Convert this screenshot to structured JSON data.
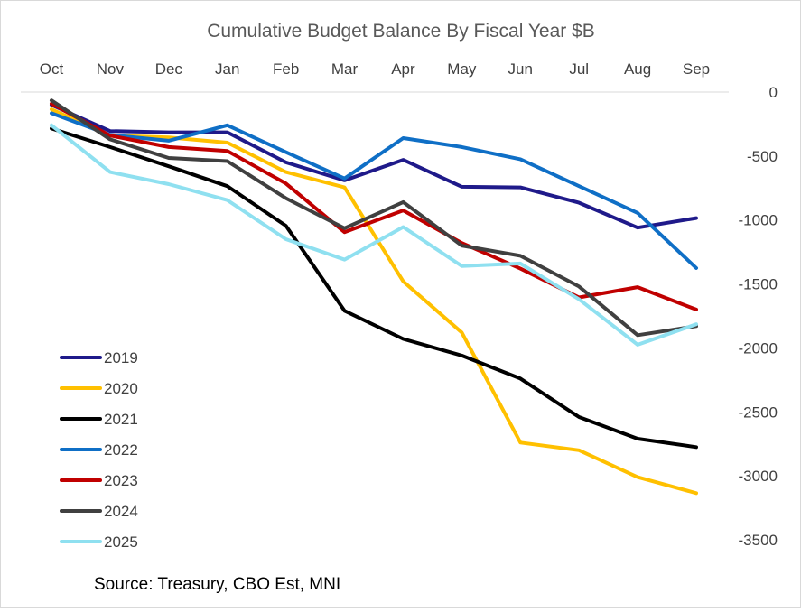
{
  "chart_data": {
    "type": "line",
    "title": "Cumulative Budget Balance By Fiscal Year $B",
    "source": "Source: Treasury, CBO Est, MNI",
    "categories": [
      "Oct",
      "Nov",
      "Dec",
      "Jan",
      "Feb",
      "Mar",
      "Apr",
      "May",
      "Jun",
      "Jul",
      "Aug",
      "Sep"
    ],
    "y_ticks": [
      "0",
      "-500",
      "-1000",
      "-1500",
      "-2000",
      "-2500",
      "-3000",
      "-3500"
    ],
    "ylim": [
      -3500,
      0
    ],
    "xaxis_position": "top",
    "yaxis_position": "right",
    "legend_position": "left",
    "series": [
      {
        "name": "2019",
        "color": "#1f1a8a",
        "values": [
          -100,
          -305,
          -315,
          -315,
          -550,
          -690,
          -530,
          -740,
          -745,
          -865,
          -1060,
          -985
        ]
      },
      {
        "name": "2020",
        "color": "#ffc000",
        "values": [
          -135,
          -340,
          -355,
          -395,
          -625,
          -745,
          -1480,
          -1880,
          -2740,
          -2800,
          -3010,
          -3135
        ]
      },
      {
        "name": "2021",
        "color": "#000000",
        "values": [
          -285,
          -430,
          -580,
          -735,
          -1045,
          -1710,
          -1930,
          -2060,
          -2240,
          -2540,
          -2710,
          -2775
        ]
      },
      {
        "name": "2022",
        "color": "#0f6fc6",
        "values": [
          -165,
          -335,
          -380,
          -260,
          -470,
          -675,
          -360,
          -430,
          -525,
          -735,
          -945,
          -1375
        ]
      },
      {
        "name": "2023",
        "color": "#c00000",
        "values": [
          -90,
          -340,
          -430,
          -460,
          -715,
          -1095,
          -925,
          -1180,
          -1380,
          -1605,
          -1525,
          -1700
        ]
      },
      {
        "name": "2024",
        "color": "#404040",
        "values": [
          -65,
          -370,
          -515,
          -540,
          -830,
          -1065,
          -860,
          -1200,
          -1280,
          -1520,
          -1900,
          -1830
        ]
      },
      {
        "name": "2025",
        "color": "#8fe0f0",
        "values": [
          -260,
          -625,
          -720,
          -845,
          -1150,
          -1310,
          -1055,
          -1360,
          -1340,
          -1620,
          -1975,
          -1815
        ]
      }
    ]
  }
}
